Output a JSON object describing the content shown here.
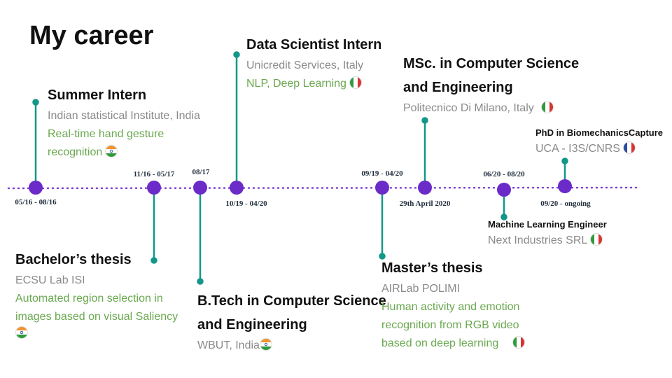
{
  "title": "My career",
  "events": [
    {
      "date": "05/16 - 08/16",
      "title": "Summer Intern",
      "org": "Indian statistical Institute, India",
      "detail": "Real-time hand gesture recognition"
    },
    {
      "date": "11/16 - 05/17",
      "title": "Bachelor’s thesis",
      "org": "ECSU Lab ISI",
      "detail": "Automated region selection in images based on visual Saliency"
    },
    {
      "date": "08/17",
      "title": "B.Tech in Computer Science and Engineering",
      "org": "WBUT, India"
    },
    {
      "date": "10/19 - 04/20",
      "title": "Data Scientist Intern",
      "org": "Unicredit Services, Italy",
      "detail": "NLP, Deep Learning"
    },
    {
      "date": "09/19 - 04/20",
      "title": "Master’s thesis",
      "org": "AIRLab POLIMI",
      "detail": "Human activity and emotion recognition from RGB video based on deep learning"
    },
    {
      "date": "29th April 2020",
      "title": "MSc. in Computer Science and Engineering",
      "org": "Politecnico Di Milano, Italy"
    },
    {
      "date": "06/20 - 08/20",
      "title": "Machine Learning Engineer",
      "org": "Next Industries SRL"
    },
    {
      "date": "09/20 - ongoing",
      "title": "PhD in BiomechanicsCapture",
      "org": "UCA - I3S/CNRS"
    }
  ]
}
